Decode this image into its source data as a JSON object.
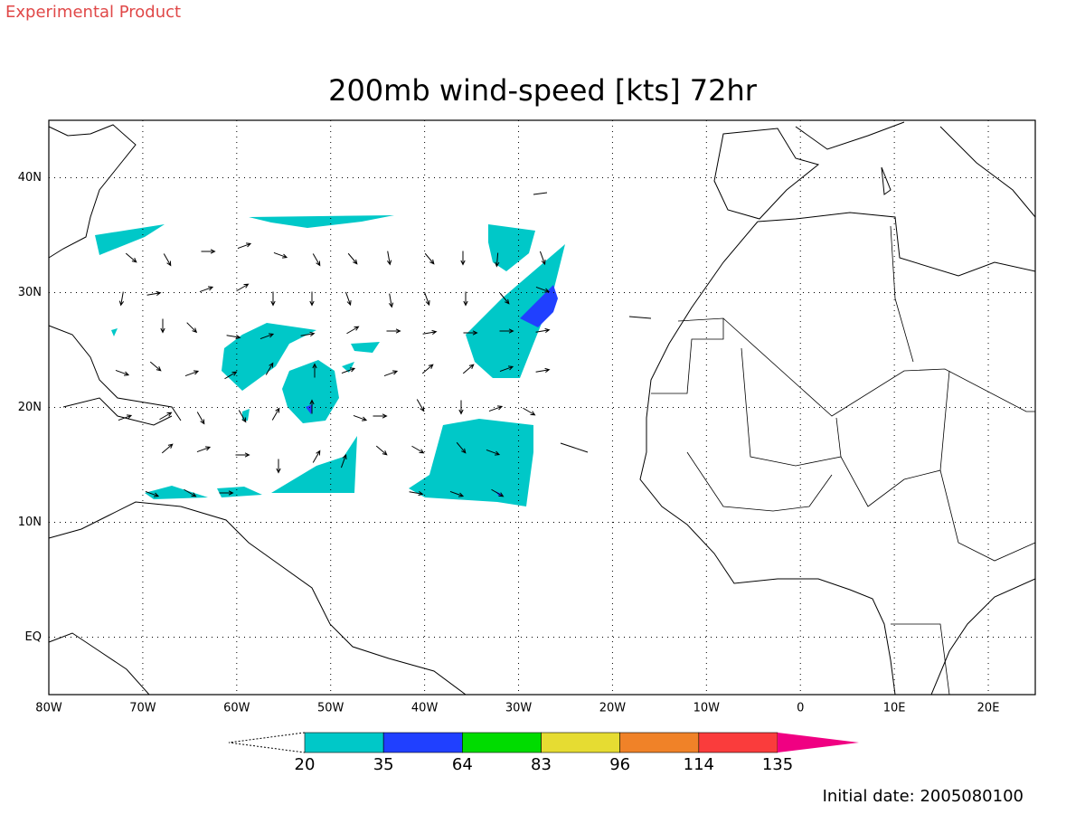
{
  "header": {
    "label": "Experimental Product"
  },
  "map": {
    "title": "200mb wind-speed [kts] 72hr",
    "xlim": [
      -80,
      25
    ],
    "ylim": [
      -5,
      45
    ],
    "xticks": [
      {
        "value": -80,
        "label": "80W"
      },
      {
        "value": -70,
        "label": "70W"
      },
      {
        "value": -60,
        "label": "60W"
      },
      {
        "value": -50,
        "label": "50W"
      },
      {
        "value": -40,
        "label": "40W"
      },
      {
        "value": -30,
        "label": "30W"
      },
      {
        "value": -20,
        "label": "20W"
      },
      {
        "value": -10,
        "label": "10W"
      },
      0,
      {
        "value": 10,
        "label": "10E"
      },
      {
        "value": 20,
        "label": "20E"
      }
    ],
    "yticks": [
      {
        "value": 0,
        "label": "EQ"
      },
      {
        "value": 10,
        "label": "10N"
      },
      {
        "value": 20,
        "label": "20N"
      },
      {
        "value": 30,
        "label": "30N"
      },
      {
        "value": 40,
        "label": "40N"
      }
    ],
    "grid": true
  },
  "colorbar": {
    "levels": [
      20,
      35,
      64,
      83,
      96,
      114,
      135
    ],
    "colors": [
      "#00c8c8",
      "#2040ff",
      "#00dc00",
      "#e6dc32",
      "#f08228",
      "#fa3c3c",
      "#f00082"
    ]
  },
  "footer": {
    "initial_date": "Initial date: 2005080100"
  }
}
